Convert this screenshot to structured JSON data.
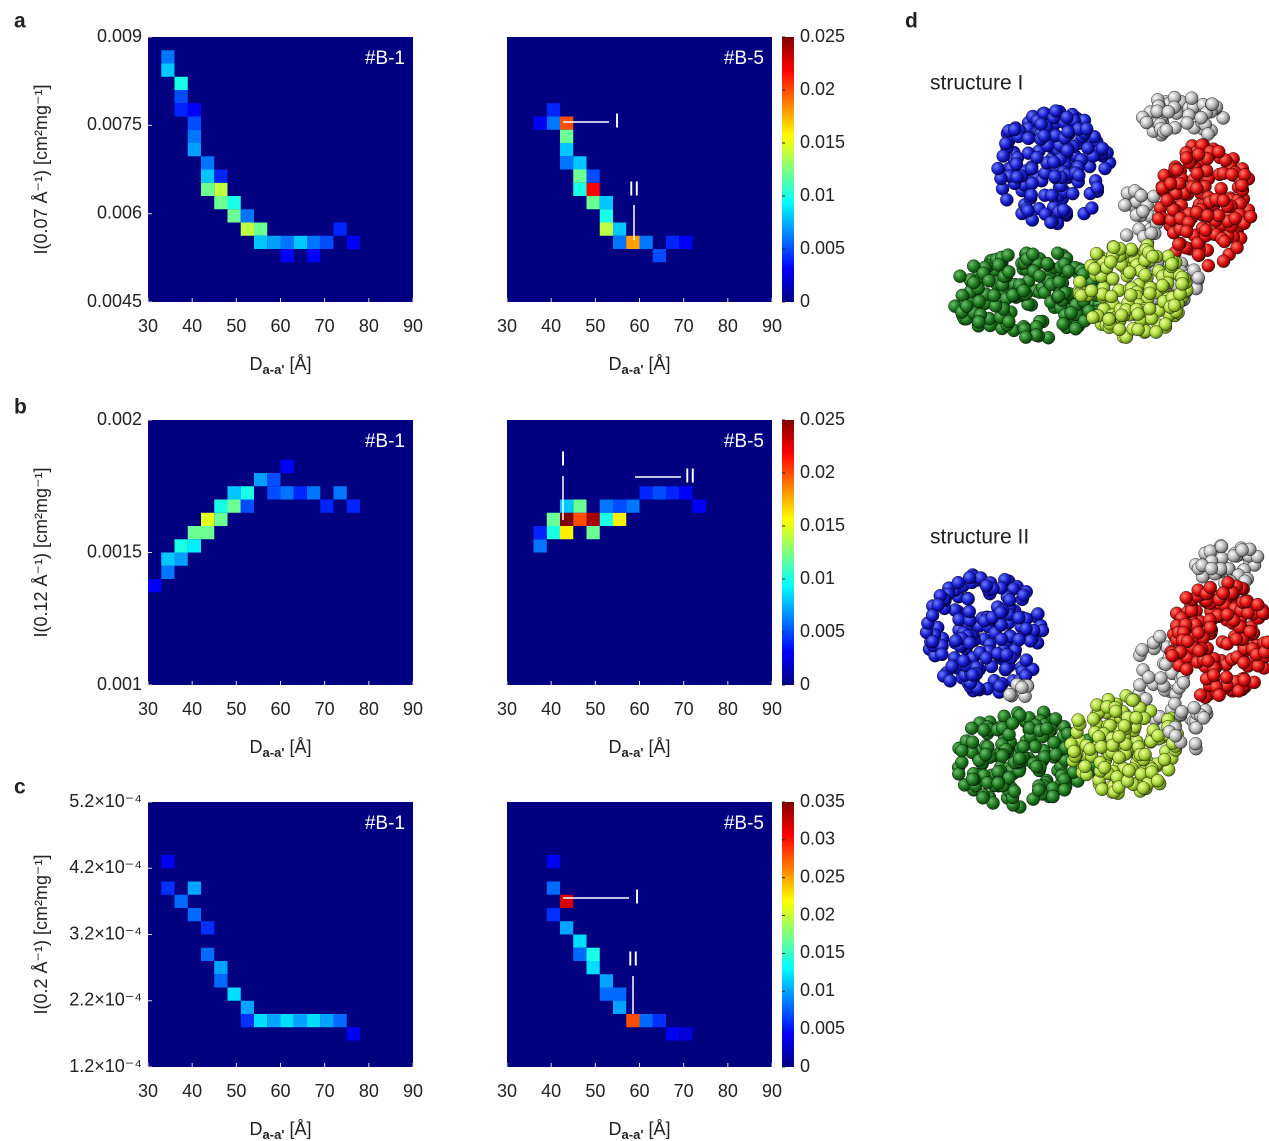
{
  "panel_labels": [
    "a",
    "b",
    "c",
    "d"
  ],
  "structures": [
    "structure I",
    "structure II"
  ],
  "chart_data": [
    {
      "type": "heatmap",
      "panel": "#B-1",
      "ylabel": "I(0.07 Å⁻¹) [cm²mg⁻¹]",
      "xlabel": [
        "D",
        "a-a'",
        " [Å]"
      ],
      "xlim": [
        30,
        90
      ],
      "xticks": [
        30,
        40,
        50,
        60,
        70,
        80,
        90
      ],
      "ylim": [
        0.0045,
        0.009
      ],
      "yticks": [
        0.0045,
        0.006,
        0.0075,
        0.009
      ],
      "clim": [
        0,
        0.025
      ],
      "cells": [
        [
          34.5,
          0.0086625,
          0.006
        ],
        [
          34.5,
          0.0084375,
          0.008
        ],
        [
          37.5,
          0.0082125,
          0.01
        ],
        [
          37.5,
          0.0079875,
          0.005
        ],
        [
          37.5,
          0.0077625,
          0.004
        ],
        [
          40.5,
          0.0075375,
          0.005
        ],
        [
          40.5,
          0.0073125,
          0.006
        ],
        [
          40.5,
          0.0070875,
          0.007
        ],
        [
          43.5,
          0.0068625,
          0.006
        ],
        [
          43.5,
          0.0066375,
          0.008
        ],
        [
          43.5,
          0.0064125,
          0.012
        ],
        [
          46.5,
          0.0064125,
          0.014
        ],
        [
          46.5,
          0.0061875,
          0.012
        ],
        [
          49.5,
          0.0061875,
          0.01
        ],
        [
          49.5,
          0.0059625,
          0.012
        ],
        [
          52.5,
          0.0057375,
          0.014
        ],
        [
          55.5,
          0.0057375,
          0.012
        ],
        [
          55.5,
          0.0055125,
          0.008
        ],
        [
          58.5,
          0.0055125,
          0.007
        ],
        [
          61.5,
          0.0055125,
          0.006
        ],
        [
          64.5,
          0.0055125,
          0.008
        ],
        [
          67.5,
          0.0055125,
          0.006
        ],
        [
          70.5,
          0.0055125,
          0.005
        ],
        [
          73.5,
          0.0057375,
          0.004
        ],
        [
          76.5,
          0.0055125,
          0.003
        ],
        [
          40.5,
          0.0077625,
          0.003
        ],
        [
          46.5,
          0.0066375,
          0.004
        ],
        [
          52.5,
          0.0059625,
          0.006
        ],
        [
          61.5,
          0.0052875,
          0.003
        ],
        [
          67.5,
          0.0052875,
          0.003
        ]
      ]
    },
    {
      "type": "heatmap",
      "panel": "#B-5",
      "xlabel": [
        "D",
        "a-a'",
        " [Å]"
      ],
      "xlim": [
        30,
        90
      ],
      "xticks": [
        30,
        40,
        50,
        60,
        70,
        80,
        90
      ],
      "ylim": [
        0.0045,
        0.009
      ],
      "clim": [
        0,
        0.025
      ],
      "cticks": [
        0,
        0.005,
        0.01,
        0.015,
        0.02,
        0.025
      ],
      "annotations": [
        "I",
        "II"
      ],
      "cells": [
        [
          40.5,
          0.0077625,
          0.004
        ],
        [
          40.5,
          0.0075375,
          0.006
        ],
        [
          43.5,
          0.0075375,
          0.02
        ],
        [
          43.5,
          0.0073125,
          0.012
        ],
        [
          43.5,
          0.0070875,
          0.008
        ],
        [
          43.5,
          0.0068625,
          0.006
        ],
        [
          46.5,
          0.0068625,
          0.008
        ],
        [
          46.5,
          0.0066375,
          0.012
        ],
        [
          46.5,
          0.0064125,
          0.01
        ],
        [
          49.5,
          0.0064125,
          0.022
        ],
        [
          49.5,
          0.0061875,
          0.012
        ],
        [
          52.5,
          0.0061875,
          0.008
        ],
        [
          52.5,
          0.0059625,
          0.01
        ],
        [
          52.5,
          0.0057375,
          0.014
        ],
        [
          55.5,
          0.0057375,
          0.008
        ],
        [
          55.5,
          0.0055125,
          0.006
        ],
        [
          58.5,
          0.0055125,
          0.018
        ],
        [
          61.5,
          0.0055125,
          0.006
        ],
        [
          64.5,
          0.0052875,
          0.005
        ],
        [
          67.5,
          0.0055125,
          0.004
        ],
        [
          70.5,
          0.0055125,
          0.003
        ],
        [
          37.5,
          0.0075375,
          0.003
        ],
        [
          49.5,
          0.0066375,
          0.005
        ]
      ]
    },
    {
      "type": "heatmap",
      "panel": "#B-1",
      "ylabel": "I(0.12 Å⁻¹) [cm²mg⁻¹]",
      "xlabel": [
        "D",
        "a-a'",
        " [Å]"
      ],
      "xlim": [
        30,
        90
      ],
      "xticks": [
        30,
        40,
        50,
        60,
        70,
        80,
        90
      ],
      "ylim": [
        0.001,
        0.002
      ],
      "yticks": [
        0.001,
        0.0015,
        0.002
      ],
      "clim": [
        0,
        0.025
      ],
      "cells": [
        [
          31.5,
          0.001375,
          0.003
        ],
        [
          34.5,
          0.001425,
          0.006
        ],
        [
          34.5,
          0.001475,
          0.008
        ],
        [
          37.5,
          0.001525,
          0.01
        ],
        [
          37.5,
          0.001475,
          0.007
        ],
        [
          40.5,
          0.001575,
          0.012
        ],
        [
          40.5,
          0.001525,
          0.009
        ],
        [
          43.5,
          0.001625,
          0.015
        ],
        [
          43.5,
          0.001575,
          0.012
        ],
        [
          46.5,
          0.001625,
          0.012
        ],
        [
          46.5,
          0.001675,
          0.01
        ],
        [
          49.5,
          0.001675,
          0.012
        ],
        [
          49.5,
          0.001725,
          0.008
        ],
        [
          52.5,
          0.001725,
          0.01
        ],
        [
          55.5,
          0.001775,
          0.007
        ],
        [
          58.5,
          0.001775,
          0.005
        ],
        [
          58.5,
          0.001725,
          0.005
        ],
        [
          61.5,
          0.001725,
          0.006
        ],
        [
          64.5,
          0.001725,
          0.004
        ],
        [
          67.5,
          0.001725,
          0.006
        ],
        [
          70.5,
          0.001675,
          0.004
        ],
        [
          73.5,
          0.001725,
          0.006
        ],
        [
          76.5,
          0.001675,
          0.004
        ],
        [
          61.5,
          0.001825,
          0.003
        ],
        [
          52.5,
          0.001675,
          0.005
        ]
      ]
    },
    {
      "type": "heatmap",
      "panel": "#B-5",
      "xlabel": [
        "D",
        "a-a'",
        " [Å]"
      ],
      "xlim": [
        30,
        90
      ],
      "xticks": [
        30,
        40,
        50,
        60,
        70,
        80,
        90
      ],
      "ylim": [
        0.001,
        0.002
      ],
      "clim": [
        0,
        0.025
      ],
      "cticks": [
        0,
        0.005,
        0.01,
        0.015,
        0.02,
        0.025
      ],
      "annotations": [
        "I",
        "II"
      ],
      "cells": [
        [
          37.5,
          0.001525,
          0.006
        ],
        [
          40.5,
          0.001575,
          0.01
        ],
        [
          40.5,
          0.001625,
          0.012
        ],
        [
          43.5,
          0.001625,
          0.025
        ],
        [
          43.5,
          0.001575,
          0.016
        ],
        [
          46.5,
          0.001625,
          0.02
        ],
        [
          46.5,
          0.001675,
          0.012
        ],
        [
          49.5,
          0.001625,
          0.024
        ],
        [
          49.5,
          0.001575,
          0.012
        ],
        [
          52.5,
          0.001625,
          0.01
        ],
        [
          52.5,
          0.001675,
          0.006
        ],
        [
          55.5,
          0.001625,
          0.016
        ],
        [
          55.5,
          0.001675,
          0.005
        ],
        [
          58.5,
          0.001675,
          0.006
        ],
        [
          61.5,
          0.001725,
          0.004
        ],
        [
          64.5,
          0.001725,
          0.005
        ],
        [
          67.5,
          0.001725,
          0.004
        ],
        [
          70.5,
          0.001725,
          0.003
        ],
        [
          73.5,
          0.001675,
          0.003
        ],
        [
          43.5,
          0.001675,
          0.008
        ],
        [
          37.5,
          0.001575,
          0.004
        ]
      ]
    },
    {
      "type": "heatmap",
      "panel": "#B-1",
      "ylabel": "I(0.2 Å⁻¹) [cm²mg⁻¹]",
      "xlabel": [
        "D",
        "a-a'",
        " [Å]"
      ],
      "xlim": [
        30,
        90
      ],
      "xticks": [
        30,
        40,
        50,
        60,
        70,
        80,
        90
      ],
      "ylim": [
        0.00012,
        0.00052
      ],
      "yticks": [
        {
          "value": 0.00012,
          "label": "1.2×10⁻⁴"
        },
        {
          "value": 0.00022,
          "label": "2.2×10⁻⁴"
        },
        {
          "value": 0.00032,
          "label": "3.2×10⁻⁴"
        },
        {
          "value": 0.00042,
          "label": "4.2×10⁻⁴"
        },
        {
          "value": 0.00052,
          "label": "5.2×10⁻⁴"
        }
      ],
      "clim": [
        0,
        0.035
      ],
      "cells": [
        [
          34.5,
          0.00043,
          0.004
        ],
        [
          34.5,
          0.00039,
          0.006
        ],
        [
          37.5,
          0.00037,
          0.008
        ],
        [
          40.5,
          0.00039,
          0.01
        ],
        [
          40.5,
          0.00035,
          0.008
        ],
        [
          43.5,
          0.00033,
          0.006
        ],
        [
          43.5,
          0.00029,
          0.008
        ],
        [
          46.5,
          0.00027,
          0.01
        ],
        [
          46.5,
          0.00025,
          0.008
        ],
        [
          49.5,
          0.00023,
          0.012
        ],
        [
          52.5,
          0.00021,
          0.01
        ],
        [
          55.5,
          0.00019,
          0.012
        ],
        [
          58.5,
          0.00019,
          0.01
        ],
        [
          61.5,
          0.00019,
          0.012
        ],
        [
          64.5,
          0.00019,
          0.01
        ],
        [
          67.5,
          0.00019,
          0.012
        ],
        [
          70.5,
          0.00019,
          0.01
        ],
        [
          73.5,
          0.00019,
          0.008
        ],
        [
          76.5,
          0.00017,
          0.004
        ],
        [
          52.5,
          0.00019,
          0.006
        ]
      ]
    },
    {
      "type": "heatmap",
      "panel": "#B-5",
      "xlabel": [
        "D",
        "a-a'",
        " [Å]"
      ],
      "xlim": [
        30,
        90
      ],
      "xticks": [
        30,
        40,
        50,
        60,
        70,
        80,
        90
      ],
      "ylim": [
        0.00012,
        0.00052
      ],
      "clim": [
        0,
        0.035
      ],
      "cticks": [
        0,
        0.005,
        0.01,
        0.015,
        0.02,
        0.025,
        0.03,
        0.035
      ],
      "annotations": [
        "I",
        "II"
      ],
      "cells": [
        [
          40.5,
          0.00039,
          0.008
        ],
        [
          40.5,
          0.00035,
          0.006
        ],
        [
          43.5,
          0.00037,
          0.032
        ],
        [
          43.5,
          0.00033,
          0.01
        ],
        [
          46.5,
          0.00031,
          0.012
        ],
        [
          46.5,
          0.00029,
          0.008
        ],
        [
          49.5,
          0.00029,
          0.014
        ],
        [
          49.5,
          0.00027,
          0.012
        ],
        [
          52.5,
          0.00025,
          0.01
        ],
        [
          52.5,
          0.00023,
          0.008
        ],
        [
          55.5,
          0.00023,
          0.008
        ],
        [
          55.5,
          0.00021,
          0.01
        ],
        [
          58.5,
          0.00019,
          0.028
        ],
        [
          61.5,
          0.00019,
          0.008
        ],
        [
          64.5,
          0.00019,
          0.006
        ],
        [
          67.5,
          0.00017,
          0.004
        ],
        [
          70.5,
          0.00017,
          0.003
        ],
        [
          40.5,
          0.00043,
          0.004
        ]
      ]
    }
  ]
}
